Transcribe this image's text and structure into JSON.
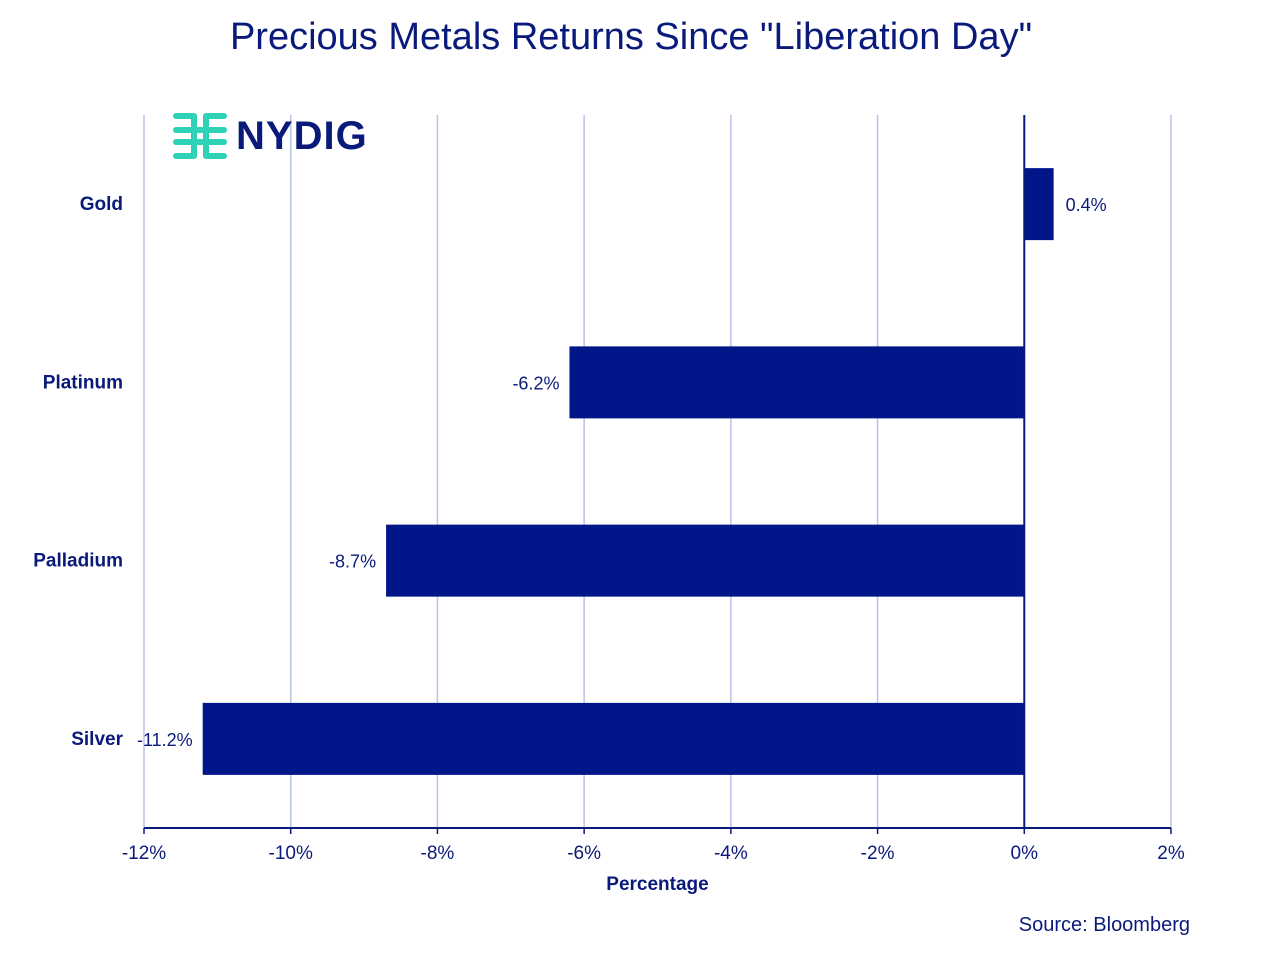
{
  "chart_data": {
    "type": "bar",
    "orientation": "horizontal",
    "title": "Precious Metals Returns Since \"Liberation Day\"",
    "xlabel": "Percentage",
    "ylabel": "",
    "categories": [
      "Gold",
      "Platinum",
      "Palladium",
      "Silver"
    ],
    "values": [
      0.4,
      -6.2,
      -8.7,
      -11.2
    ],
    "data_labels": [
      "0.4%",
      "-6.2%",
      "-8.7%",
      "-11.2%"
    ],
    "xlim": [
      -12,
      2
    ],
    "x_ticks": [
      -12,
      -10,
      -8,
      -6,
      -4,
      -2,
      0,
      2
    ],
    "x_tick_labels": [
      "-12%",
      "-10%",
      "-8%",
      "-6%",
      "-4%",
      "-2%",
      "0%",
      "2%"
    ],
    "grid": "vertical",
    "legend": "none",
    "colors": {
      "bar": "#001689",
      "grid": "#b9c3e8",
      "text": "#0a1a7a",
      "logo_mark": "#2ed3b7"
    }
  },
  "logo": {
    "text": "NYDIG",
    "icon": "nydig-logo-mark"
  },
  "source": "Source: Bloomberg"
}
